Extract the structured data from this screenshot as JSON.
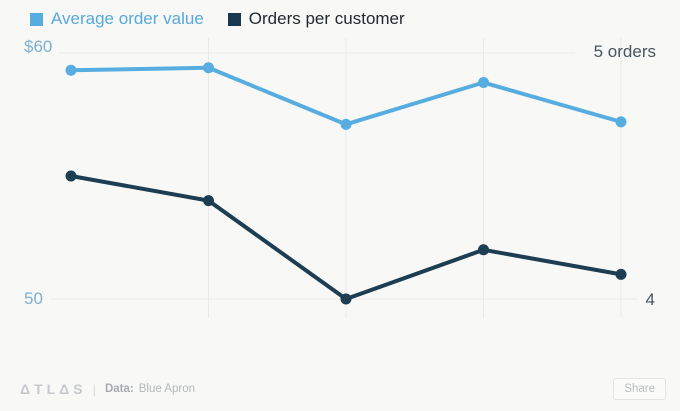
{
  "page": {
    "background_color": "#f8f8f7"
  },
  "legend": {
    "items": [
      {
        "label": "Average order value",
        "swatch_color": "#57ade0",
        "text_color": "#57a9dc"
      },
      {
        "label": "Orders per customer",
        "swatch_color": "#17384e",
        "text_color": "#24292e"
      }
    ]
  },
  "chart_data": {
    "type": "line",
    "x": [
      1,
      2,
      3,
      4,
      5
    ],
    "x_tick_labels": [],
    "series": [
      {
        "name": "Average order value",
        "axis": "left",
        "color": "#57ade0",
        "values": [
          59.3,
          59.4,
          57.1,
          58.8,
          57.2
        ]
      },
      {
        "name": "Orders per customer",
        "axis": "right",
        "color": "#1c3d52",
        "values": [
          4.5,
          4.4,
          4.0,
          4.2,
          4.1
        ]
      }
    ],
    "left_axis": {
      "top_label": "$60",
      "bottom_label": "50",
      "top_value": 60,
      "bottom_value": 50,
      "label_color": "#7fafd0"
    },
    "right_axis": {
      "top_label": "5 orders",
      "bottom_label": "4",
      "top_value": 5,
      "bottom_value": 4,
      "label_color": "#47545e"
    },
    "grid": {
      "color": "#e8eae9",
      "vertical_at_points": [
        2,
        3,
        4,
        5
      ],
      "horizontal_at_axis_bounds": true
    },
    "legend_position": "top-left",
    "title": "",
    "marker": "circle"
  },
  "footer": {
    "logo": "ΔTLΔS",
    "divider": "|",
    "data_label": "Data:",
    "data_source": "Blue Apron",
    "share_label": "Share"
  }
}
